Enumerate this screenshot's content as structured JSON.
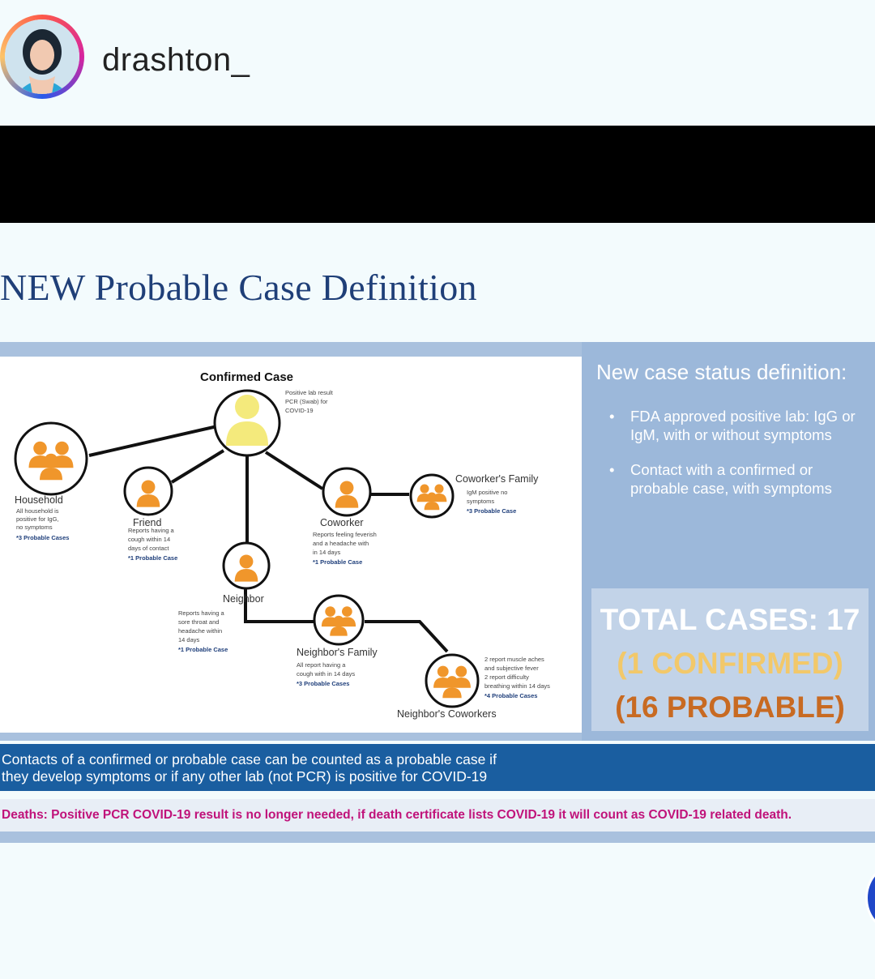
{
  "header": {
    "username": "drashton_"
  },
  "slide": {
    "title": "NEW Probable Case Definition",
    "diagram": {
      "confirmed": {
        "label": "Confirmed Case",
        "desc": [
          "Positive lab result",
          "PCR (Swab) for",
          "COVID-19"
        ]
      },
      "household": {
        "label": "Household",
        "desc": [
          "All household is",
          "positive for IgG,",
          "no symptoms"
        ],
        "count": "*3 Probable Cases"
      },
      "friend": {
        "label": "Friend",
        "desc": [
          "Reports having a",
          "cough within 14",
          "days of contact"
        ],
        "count": "*1 Probable Case"
      },
      "coworker": {
        "label": "Coworker",
        "desc": [
          "Reports feeling feverish",
          "and a headache with",
          "in 14 days"
        ],
        "count": "*1 Probable Case"
      },
      "coworkers_family": {
        "label": "Coworker's Family",
        "desc": [
          "IgM positive no",
          "symptoms"
        ],
        "count": "*3 Probable Case"
      },
      "neighbor": {
        "label": "Neighbor",
        "desc": [
          "Reports having a",
          "sore throat and",
          "headache within",
          "14 days"
        ],
        "count": "*1 Probable Case"
      },
      "neighbors_family": {
        "label": "Neighbor's Family",
        "desc": [
          "All report having a",
          "cough with in 14 days"
        ],
        "count": "*3 Probable Cases"
      },
      "neighbors_coworkers": {
        "label": "Neighbor's Coworkers",
        "desc": [
          "2 report muscle aches",
          "and subjective fever",
          "2 report difficulty",
          "breathing within 14 days"
        ],
        "count": "*4 Probable Cases"
      }
    },
    "right_panel": {
      "title": "New case status definition:",
      "bullets": [
        "FDA approved positive lab: IgG or IgM, with or without symptoms",
        "Contact with a confirmed or probable case, with symptoms"
      ],
      "totals": [
        "TOTAL CASES: 17",
        "(1 CONFIRMED)",
        "(16 PROBABLE)"
      ]
    },
    "contacts_note": [
      "Contacts of a confirmed or probable case can be counted as a probable case if",
      "they develop symptoms or if any other lab (not PCR) is positive for COVID-19"
    ],
    "deaths_note": "Deaths: Positive PCR COVID-19 result is no longer needed, if death certificate lists COVID-19 it will count as COVID-19 related death."
  },
  "colors": {
    "title_blue": "#1f3f78",
    "panel_blue": "#9cb8da",
    "bar_blue": "#1a5ea0",
    "deaths_magenta": "#c0127a",
    "person_orange": "#f0962b",
    "confirmed_yellow": "#f4ea7c"
  },
  "icons": [
    "avatar-icon",
    "person-icon",
    "group-icon"
  ]
}
